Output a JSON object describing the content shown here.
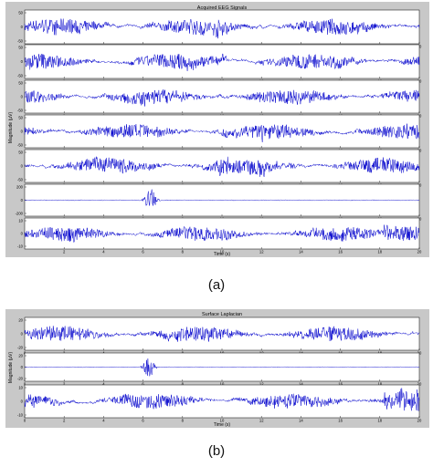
{
  "captions": {
    "a": "(a)",
    "b": "(b)"
  },
  "chart_data": [
    {
      "type": "line",
      "title": "Acquired EEG Signals",
      "xlabel": "Time (s)",
      "ylabel": "Magnitude (μV)",
      "xlim": [
        0,
        20
      ],
      "xticks": [
        2,
        4,
        6,
        8,
        10,
        12,
        14,
        16,
        18,
        20
      ],
      "color": "#0000cc",
      "series": [
        {
          "ylim": [
            -50,
            50
          ],
          "yticks": [
            "50",
            "0",
            "-50"
          ]
        },
        {
          "ylim": [
            -50,
            50
          ],
          "yticks": [
            "50",
            "0",
            "-50"
          ]
        },
        {
          "ylim": [
            -50,
            50
          ],
          "yticks": [
            "50",
            "0",
            "-50"
          ]
        },
        {
          "ylim": [
            -50,
            50
          ],
          "yticks": [
            "50",
            "0",
            "-50"
          ]
        },
        {
          "ylim": [
            -50,
            50
          ],
          "yticks": [
            "50",
            "0",
            "-50"
          ]
        },
        {
          "ylim": [
            -200,
            200
          ],
          "yticks": [
            "200",
            "0",
            "-200"
          ]
        },
        {
          "ylim": [
            -10,
            10
          ],
          "yticks": [
            "10",
            "0",
            "-10"
          ]
        }
      ]
    },
    {
      "type": "line",
      "title": "Surface Laplacian",
      "xlabel": "Time (s)",
      "ylabel": "Magnitude (μV)",
      "xlim": [
        0,
        20
      ],
      "xticks": [
        0,
        2,
        4,
        6,
        8,
        10,
        12,
        14,
        16,
        18,
        20
      ],
      "color": "#0000cc",
      "series": [
        {
          "ylim": [
            -20,
            20
          ],
          "yticks": [
            "20",
            "0",
            "-20"
          ]
        },
        {
          "ylim": [
            -20,
            20
          ],
          "yticks": [
            "20",
            "0",
            "-20"
          ]
        },
        {
          "ylim": [
            -10,
            10
          ],
          "yticks": [
            "10",
            "0",
            "-10"
          ]
        }
      ]
    }
  ]
}
